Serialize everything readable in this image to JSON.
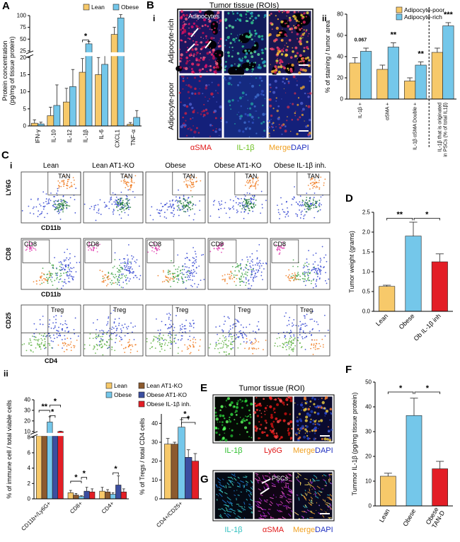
{
  "figure": {
    "labels": [
      "A",
      "B",
      "C",
      "D",
      "E",
      "F",
      "G"
    ],
    "panel_B": {
      "title": "Tumor tissue (ROIs)",
      "sub_i": "i",
      "sub_ii": "ii",
      "rows": [
        "Adipocyte-rich",
        "Adipocyte-poor"
      ],
      "callout": "Adipocytes",
      "channels": [
        "αSMA",
        "IL-1β",
        "Merge",
        "DAPI"
      ]
    },
    "panel_C": {
      "sub_i": "i",
      "sub_ii": "ii",
      "columns": [
        "Lean",
        "Lean AT1-KO",
        "Obese",
        "Obese AT1-KO",
        "Obese IL-1β inh."
      ],
      "rows": [
        {
          "y": "LY6G",
          "x": "CD11b",
          "gate": "TAN"
        },
        {
          "y": "CD8",
          "x": "CD11b",
          "gate": "CD8"
        },
        {
          "y": "CD25",
          "x": "CD4",
          "gate": "Treg"
        }
      ]
    },
    "panel_E": {
      "title": "Tumor tissue (ROI)",
      "channels": [
        "IL-1β",
        "Ly6G",
        "Merge",
        "DAPI"
      ]
    },
    "panel_G": {
      "callout": "PSCs",
      "channels": [
        "IL-1β",
        "αSMA",
        "Merge",
        "DAPI"
      ]
    }
  },
  "chart_data": [
    {
      "type": "bar",
      "ylabel": [
        "Protein concentration",
        "(pg/mg of tissue protein)"
      ],
      "categories": [
        "IFN-γ",
        "IL-10",
        "IL-12",
        "IL-1β",
        "IL-6",
        "CXCL1",
        "TNF-α"
      ],
      "series": [
        {
          "name": "Lean",
          "color": "#f7c96a",
          "values": [
            0.8,
            3,
            7,
            15.7,
            15,
            60,
            0.5
          ],
          "errors": [
            1,
            2.5,
            4,
            4,
            5,
            15,
            0.5
          ]
        },
        {
          "name": "Obese",
          "color": "#74c7ea",
          "values": [
            0.6,
            6,
            11.5,
            40,
            18,
            95,
            2.5
          ],
          "errors": [
            0.5,
            6,
            5,
            5,
            4,
            7,
            2
          ]
        }
      ],
      "ylim": [
        0,
        100
      ],
      "ybreak": [
        20,
        25
      ],
      "yticks": [
        0,
        5,
        10,
        15,
        20,
        25,
        50,
        75,
        100
      ],
      "annotations": [
        "*"
      ]
    },
    {
      "type": "bar",
      "ylabel": "% of staining / tumor area",
      "categories": [
        "IL-1β +",
        "αSMA +",
        "IL-1β αSMA Double +",
        "IL-1β that is originated in PSCs (% of total IL1β)"
      ],
      "series": [
        {
          "name": "Adipocyte-poor",
          "color": "#f7c96a",
          "values": [
            34,
            28,
            17,
            44
          ],
          "errors": [
            5,
            4,
            3,
            4
          ]
        },
        {
          "name": "Adipocyte-rich",
          "color": "#74c7ea",
          "values": [
            45,
            49,
            32,
            69
          ],
          "errors": [
            3,
            4,
            3,
            3
          ]
        }
      ],
      "ylim": [
        0,
        80
      ],
      "yticks": [
        0,
        20,
        40,
        60,
        80
      ],
      "annotations": [
        "0.067",
        "**",
        "**",
        "***"
      ]
    },
    {
      "type": "bar",
      "ylabel": "Tumor weight (grams)",
      "categories": [
        "Lean",
        "Obese",
        "Ob IL-1β inh"
      ],
      "values": [
        0.63,
        1.9,
        1.25
      ],
      "errors": [
        0.03,
        0.35,
        0.2
      ],
      "colors": [
        "#f7c96a",
        "#74c7ea",
        "#e31e26"
      ],
      "ylim": [
        0,
        2.5
      ],
      "yticks": [
        {
          "value": 0,
          "label": "0.0"
        },
        0.5,
        {
          "value": 1,
          "label": "1.0"
        },
        1.5,
        {
          "value": 2,
          "label": "2.0"
        },
        2.5
      ],
      "annotations": [
        "**",
        "*"
      ]
    },
    {
      "type": "bar",
      "ylabel": "% of immune cell / total viable cells",
      "categories": [
        "CD11b+/Ly6G+",
        "CD8+",
        "CD4+"
      ],
      "series": [
        {
          "name": "Lean",
          "color": "#f7c96a",
          "values": [
            8.5,
            0.8,
            1.0
          ],
          "errors": [
            0.5,
            0.3,
            0.5
          ]
        },
        {
          "name": "Lean AT1-KO",
          "color": "#8c5a2e",
          "values": [
            8.5,
            0.5,
            0.9
          ],
          "errors": [
            0.5,
            0.2,
            0.3
          ]
        },
        {
          "name": "Obese",
          "color": "#74c7ea",
          "values": [
            19,
            0.3,
            0.6
          ],
          "errors": [
            5,
            0.1,
            0.2
          ]
        },
        {
          "name": "Obese AT1-KO",
          "color": "#3b4ea0",
          "values": [
            8.5,
            1.0,
            1.8
          ],
          "errors": [
            0.5,
            0.5,
            1.2
          ]
        },
        {
          "name": "Obese IL-1β inh.",
          "color": "#e31e26",
          "values": [
            10,
            0.9,
            0.9
          ],
          "errors": [
            0.3,
            0.4,
            0.4
          ]
        }
      ],
      "ylim": [
        0,
        40
      ],
      "ybreak": [
        8,
        10
      ],
      "yticks": [
        0,
        2,
        4,
        6,
        8,
        10,
        20,
        30,
        40
      ],
      "annotations": [
        "**",
        "*",
        "*",
        "*",
        "*",
        "*"
      ]
    },
    {
      "type": "bar",
      "ylabel": "% of Tregs / total CD4 cells",
      "categories": [
        "CD4+/CD25+"
      ],
      "series": [
        {
          "color": "#f7c96a",
          "values": [
            29
          ],
          "errors": [
            3
          ]
        },
        {
          "color": "#8c5a2e",
          "values": [
            29
          ],
          "errors": [
            1
          ]
        },
        {
          "color": "#74c7ea",
          "values": [
            38
          ],
          "errors": [
            4
          ]
        },
        {
          "color": "#3b4ea0",
          "values": [
            22
          ],
          "errors": [
            4
          ]
        },
        {
          "color": "#e31e26",
          "values": [
            20
          ],
          "errors": [
            4
          ]
        }
      ],
      "ylim": [
        0,
        45
      ],
      "yticks": [
        0,
        10,
        20,
        30,
        40
      ],
      "annotations": [
        "*",
        "*"
      ]
    },
    {
      "type": "bar",
      "ylabel": "Tummor IL-1β (pg/mg tissue protein)",
      "categories": [
        "Lean",
        "Obese",
        "Obese TAN-D"
      ],
      "values": [
        12,
        36.5,
        15
      ],
      "errors": [
        1.2,
        7,
        3
      ],
      "colors": [
        "#f7c96a",
        "#74c7ea",
        "#e31e26"
      ],
      "ylim": [
        0,
        50
      ],
      "yticks": [
        0,
        10,
        20,
        30,
        40,
        50
      ],
      "annotations": [
        "*",
        "*"
      ]
    }
  ]
}
